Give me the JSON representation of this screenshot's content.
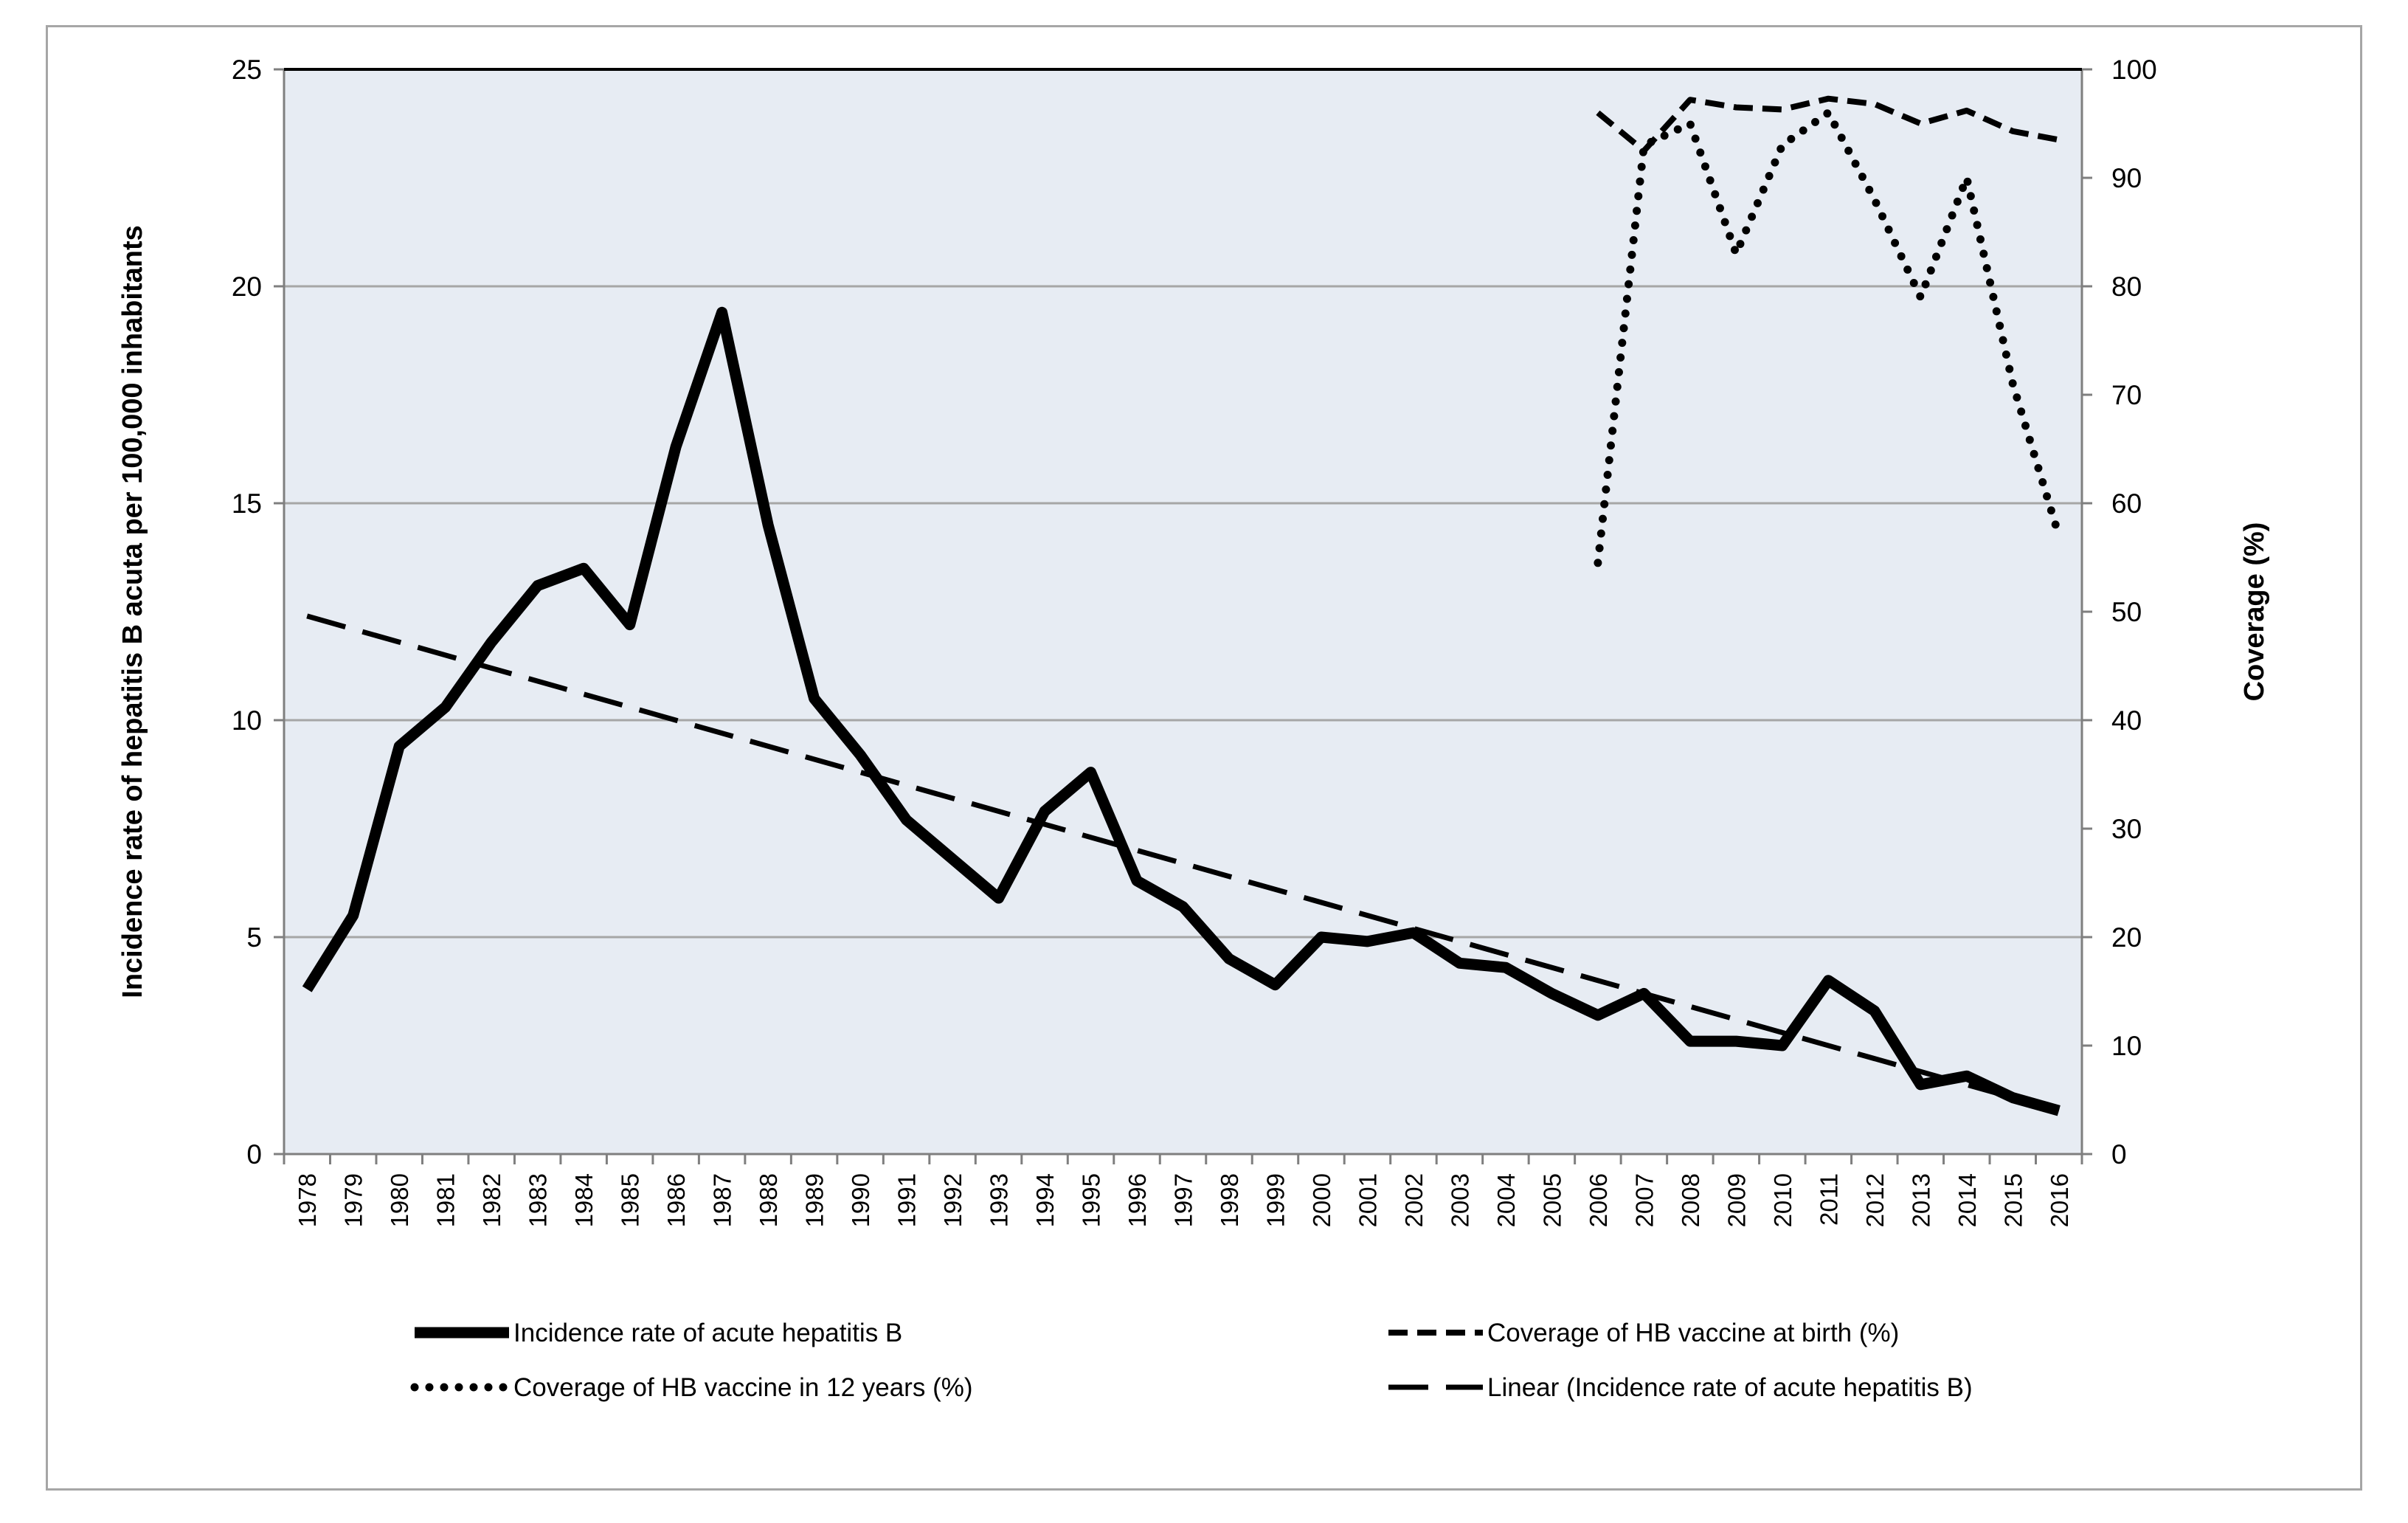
{
  "chart_data": {
    "type": "line",
    "title": "",
    "xlabel": "",
    "ylabel": "Incidence rate of hepatitis B acuta per 100,000 inhabitants",
    "y2label": "Coverage (%)",
    "ylim": [
      0,
      25
    ],
    "y2lim": [
      0,
      100
    ],
    "yticks": [
      "0",
      "5",
      "10",
      "15",
      "20",
      "25"
    ],
    "y2ticks": [
      "0",
      "10",
      "20",
      "30",
      "40",
      "50",
      "60",
      "70",
      "80",
      "90",
      "100"
    ],
    "grid": true,
    "legend_position": "bottom",
    "colors": {
      "plot_bg": "#e7ecf3",
      "line": "#000000",
      "grid": "#a6a6a6",
      "frame": "#a6a6a6"
    },
    "categories": [
      "1978",
      "1979",
      "1980",
      "1981",
      "1982",
      "1983",
      "1984",
      "1985",
      "1986",
      "1987",
      "1988",
      "1989",
      "1990",
      "1991",
      "1992",
      "1993",
      "1994",
      "1995",
      "1996",
      "1997",
      "1998",
      "1999",
      "2000",
      "2001",
      "2002",
      "2003",
      "2004",
      "2005",
      "2006",
      "2007",
      "2008",
      "2009",
      "2010",
      "2011",
      "2012",
      "2013",
      "2014",
      "2015",
      "2016"
    ],
    "series": [
      {
        "name": "Incidence rate of acute hepatitis B",
        "axis": "left",
        "style": "solid-thick",
        "values": [
          3.8,
          5.5,
          9.4,
          10.3,
          11.8,
          13.1,
          13.5,
          12.2,
          16.3,
          19.4,
          14.5,
          10.5,
          9.2,
          7.7,
          6.8,
          5.9,
          7.9,
          8.8,
          6.3,
          5.7,
          4.5,
          3.9,
          5.0,
          4.9,
          5.1,
          4.4,
          4.3,
          3.7,
          3.2,
          3.7,
          2.6,
          2.6,
          2.5,
          4.0,
          3.3,
          1.6,
          1.8,
          1.3,
          1.0
        ]
      },
      {
        "name": "Coverage of HB vaccine at birth (%)",
        "axis": "right",
        "style": "short-dash",
        "values": [
          null,
          null,
          null,
          null,
          null,
          null,
          null,
          null,
          null,
          null,
          null,
          null,
          null,
          null,
          null,
          null,
          null,
          null,
          null,
          null,
          null,
          null,
          null,
          null,
          null,
          null,
          null,
          null,
          96,
          92.5,
          97.2,
          96.5,
          96.3,
          97.3,
          96.8,
          95.0,
          96.2,
          94.3,
          93.5
        ]
      },
      {
        "name": "Coverage of HB vaccine in 12 years (%)",
        "axis": "right",
        "style": "dotted",
        "values": [
          null,
          null,
          null,
          null,
          null,
          null,
          null,
          null,
          null,
          null,
          null,
          null,
          null,
          null,
          null,
          null,
          null,
          null,
          null,
          null,
          null,
          null,
          null,
          null,
          null,
          null,
          null,
          null,
          54.5,
          93.0,
          95.0,
          83.0,
          93.0,
          96.0,
          88.0,
          79.0,
          90.0,
          71.0,
          57.0
        ]
      },
      {
        "name": "Linear (Incidence rate of acute hepatitis B)",
        "axis": "left",
        "style": "long-dash",
        "values": [
          12.4,
          null,
          null,
          null,
          null,
          null,
          null,
          null,
          null,
          null,
          null,
          null,
          null,
          null,
          null,
          null,
          null,
          null,
          null,
          null,
          null,
          null,
          null,
          null,
          null,
          null,
          null,
          null,
          null,
          null,
          null,
          null,
          null,
          null,
          null,
          null,
          null,
          null,
          1.0
        ]
      }
    ]
  }
}
